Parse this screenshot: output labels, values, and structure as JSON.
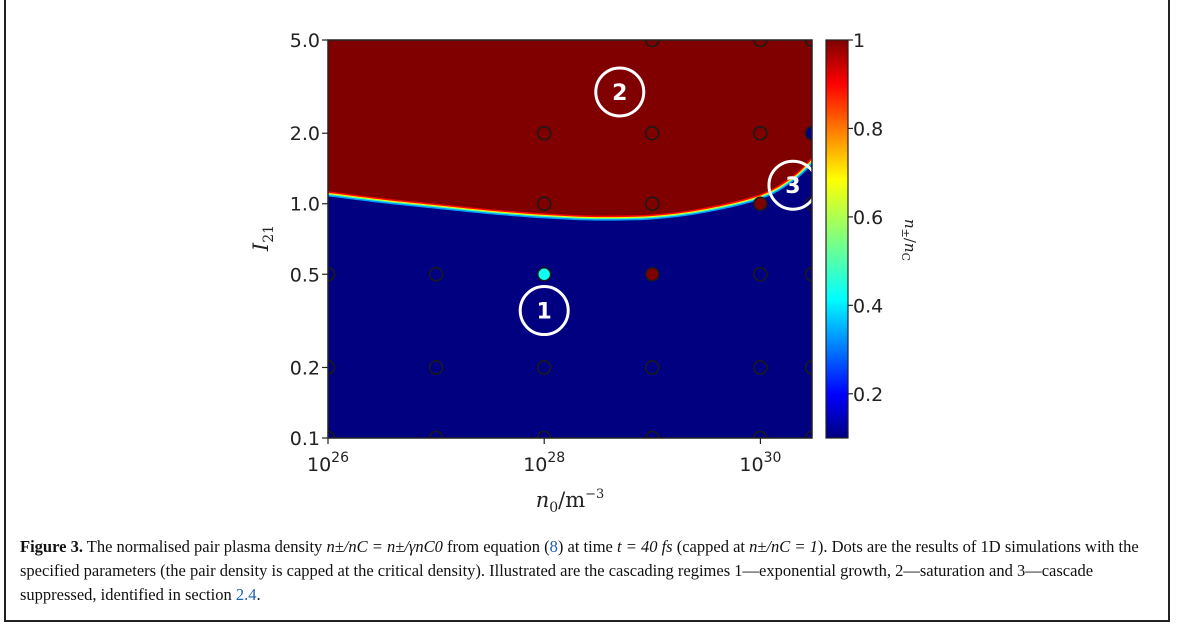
{
  "chart_data": {
    "type": "heatmap",
    "title": "",
    "x_scale": "log",
    "y_scale": "log",
    "xlabel": "n_0/m^-3",
    "ylabel": "I_21",
    "colorbar_label": "n_±/n_C",
    "colormap": "jet",
    "xlim": [
      1e+26,
      3e+30
    ],
    "ylim": [
      0.1,
      5.0
    ],
    "x_ticks": [
      {
        "value": 1e+26,
        "base": "10",
        "exp": "26"
      },
      {
        "value": 1e+28,
        "base": "10",
        "exp": "28"
      },
      {
        "value": 1e+30,
        "base": "10",
        "exp": "30"
      }
    ],
    "y_ticks": [
      {
        "value": 0.1,
        "label": "0.1"
      },
      {
        "value": 0.2,
        "label": "0.2"
      },
      {
        "value": 0.5,
        "label": "0.5"
      },
      {
        "value": 1.0,
        "label": "1.0"
      },
      {
        "value": 2.0,
        "label": "2.0"
      },
      {
        "value": 5.0,
        "label": "5.0"
      }
    ],
    "colorbar_range": [
      0.1,
      1.0
    ],
    "colorbar_ticks": [
      {
        "value": 0.2,
        "label": "0.2"
      },
      {
        "value": 0.4,
        "label": "0.4"
      },
      {
        "value": 0.6,
        "label": "0.6"
      },
      {
        "value": 0.8,
        "label": "0.8"
      },
      {
        "value": 1.0,
        "label": "1"
      }
    ],
    "saturation_boundary": [
      {
        "x": 1e+26,
        "y": 1.13
      },
      {
        "x": 3e+26,
        "y": 1.06
      },
      {
        "x": 1e+27,
        "y": 1.0
      },
      {
        "x": 3e+27,
        "y": 0.95
      },
      {
        "x": 1e+28,
        "y": 0.91
      },
      {
        "x": 3e+28,
        "y": 0.89
      },
      {
        "x": 1e+29,
        "y": 0.9
      },
      {
        "x": 3e+29,
        "y": 0.96
      },
      {
        "x": 1e+30,
        "y": 1.1
      },
      {
        "x": 2e+30,
        "y": 1.32
      },
      {
        "x": 3e+30,
        "y": 1.58
      }
    ],
    "region_values": {
      "below_boundary": 0.1,
      "above_boundary": 1.0
    },
    "simulation_points": [
      {
        "x": 1e+26,
        "y": 0.1,
        "value": 0.1
      },
      {
        "x": 1e+27,
        "y": 0.1,
        "value": 0.1
      },
      {
        "x": 1e+28,
        "y": 0.1,
        "value": 0.1
      },
      {
        "x": 1e+29,
        "y": 0.1,
        "value": 0.1
      },
      {
        "x": 1e+30,
        "y": 0.1,
        "value": 0.1
      },
      {
        "x": 3e+30,
        "y": 0.1,
        "value": 0.1
      },
      {
        "x": 1e+26,
        "y": 0.2,
        "value": 0.1
      },
      {
        "x": 1e+27,
        "y": 0.2,
        "value": 0.1
      },
      {
        "x": 1e+28,
        "y": 0.2,
        "value": 0.1
      },
      {
        "x": 1e+29,
        "y": 0.2,
        "value": 0.1
      },
      {
        "x": 1e+30,
        "y": 0.2,
        "value": 0.1
      },
      {
        "x": 3e+30,
        "y": 0.2,
        "value": 0.1
      },
      {
        "x": 1e+26,
        "y": 0.5,
        "value": 0.1
      },
      {
        "x": 1e+27,
        "y": 0.5,
        "value": 0.1
      },
      {
        "x": 1e+28,
        "y": 0.5,
        "value": 0.45
      },
      {
        "x": 1e+29,
        "y": 0.5,
        "value": 1.0
      },
      {
        "x": 1e+30,
        "y": 0.5,
        "value": 0.1
      },
      {
        "x": 3e+30,
        "y": 0.5,
        "value": 0.1
      },
      {
        "x": 1e+28,
        "y": 1.0,
        "value": 1.0
      },
      {
        "x": 1e+29,
        "y": 1.0,
        "value": 1.0
      },
      {
        "x": 1e+30,
        "y": 1.0,
        "value": 1.0
      },
      {
        "x": 3e+30,
        "y": 1.0,
        "value": 0.1
      },
      {
        "x": 1e+28,
        "y": 2.0,
        "value": 1.0
      },
      {
        "x": 1e+29,
        "y": 2.0,
        "value": 1.0
      },
      {
        "x": 1e+30,
        "y": 2.0,
        "value": 1.0
      },
      {
        "x": 3e+30,
        "y": 2.0,
        "value": 0.1
      },
      {
        "x": 1e+29,
        "y": 5.0,
        "value": 1.0
      },
      {
        "x": 1e+30,
        "y": 5.0,
        "value": 1.0
      },
      {
        "x": 3e+30,
        "y": 5.0,
        "value": 1.0
      }
    ],
    "region_markers": [
      {
        "label": "1",
        "x": 1e+28,
        "y": 0.35
      },
      {
        "label": "2",
        "x": 5e+28,
        "y": 3.0
      },
      {
        "label": "3",
        "x": 2e+30,
        "y": 1.2
      }
    ]
  },
  "caption": {
    "label": "Figure 3.",
    "text_a": " The normalised pair plasma density ",
    "formula_a": "n±/nC = n±/γnC0",
    "text_b": " from equation (",
    "eq_ref": "8",
    "text_c": ") at time ",
    "formula_b": "t = 40 fs",
    "text_d": " (capped at ",
    "formula_c": "n±/nC = 1",
    "text_e": "). Dots are the results of 1D simulations with the specified parameters (the pair density is capped at the critical density). Illustrated are the cascading regimes 1—exponential growth, 2—saturation and 3—cascade suppressed, identified in section ",
    "section_ref": "2.4",
    "text_f": "."
  }
}
